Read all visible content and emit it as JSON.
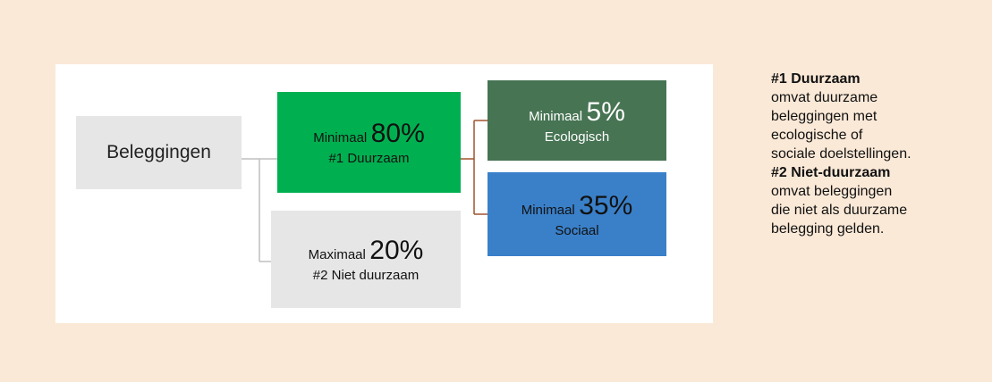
{
  "root": {
    "label": "Beleggingen"
  },
  "nodes": [
    {
      "prefix": "Minimaal",
      "value": "80%",
      "label": "#1 Duurzaam"
    },
    {
      "prefix": "Minimaal",
      "value": "5%",
      "label": "Ecologisch"
    },
    {
      "prefix": "Minimaal",
      "value": "35%",
      "label": "Sociaal"
    },
    {
      "prefix": "Maximaal",
      "value": "20%",
      "label": "#2 Niet duurzaam"
    }
  ],
  "notes": [
    {
      "title": "#1 Duurzaam",
      "lines": [
        "omvat duurzame",
        "beleggingen met",
        "ecologische of",
        "sociale doelstellingen."
      ]
    },
    {
      "title": "#2 Niet-duurzaam",
      "lines": [
        "omvat beleggingen",
        "die niet als duurzame",
        "belegging gelden."
      ]
    }
  ]
}
